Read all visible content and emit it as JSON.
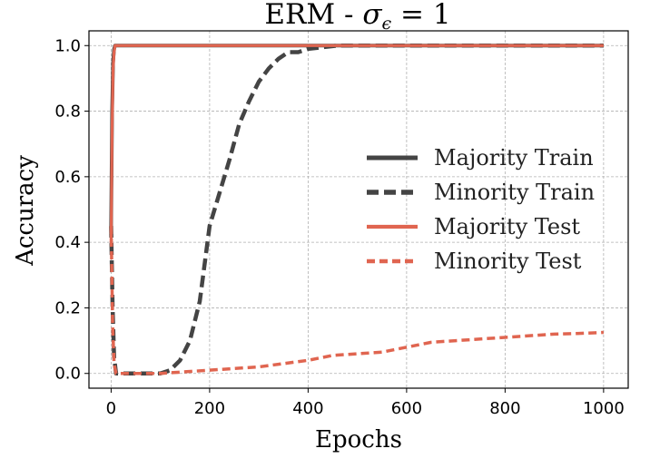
{
  "chart_data": {
    "type": "line",
    "title": "ERM - σϵ = 1",
    "title_prefix": "ERM - ",
    "title_sigma": "σ",
    "title_sub": "ϵ",
    "title_suffix": " = 1",
    "xlabel": "Epochs",
    "ylabel": "Accuracy",
    "xlim": [
      -45,
      1050
    ],
    "ylim": [
      -0.045,
      1.045
    ],
    "xticks": [
      0,
      200,
      400,
      600,
      800,
      1000
    ],
    "yticks": [
      0.0,
      0.2,
      0.4,
      0.6,
      0.8,
      1.0
    ],
    "xtick_labels": [
      "0",
      "200",
      "400",
      "600",
      "800",
      "1000"
    ],
    "ytick_labels": [
      "0.0",
      "0.2",
      "0.4",
      "0.6",
      "0.8",
      "1.0"
    ],
    "grid": true,
    "legend_position": "center-right",
    "series": [
      {
        "name": "Majority Train",
        "color": "#444444",
        "style": "solid",
        "x": [
          0,
          2,
          4,
          6,
          8,
          10,
          1000
        ],
        "y": [
          0.45,
          0.8,
          0.95,
          0.99,
          1.0,
          1.0,
          1.0
        ]
      },
      {
        "name": "Minority Train",
        "color": "#444444",
        "style": "dashed",
        "x": [
          0,
          3,
          6,
          10,
          50,
          100,
          120,
          140,
          160,
          180,
          200,
          220,
          240,
          260,
          280,
          300,
          320,
          340,
          360,
          380,
          400,
          430,
          460,
          1000
        ],
        "y": [
          0.45,
          0.2,
          0.05,
          0.0,
          0.0,
          0.0,
          0.01,
          0.04,
          0.1,
          0.22,
          0.45,
          0.55,
          0.65,
          0.76,
          0.83,
          0.89,
          0.93,
          0.96,
          0.98,
          0.98,
          0.99,
          0.995,
          1.0,
          1.0
        ]
      },
      {
        "name": "Majority Test",
        "color": "#e06550",
        "style": "solid",
        "x": [
          0,
          2,
          4,
          6,
          8,
          10,
          1000
        ],
        "y": [
          0.4,
          0.75,
          0.93,
          0.98,
          1.0,
          1.0,
          1.0
        ]
      },
      {
        "name": "Minority Test",
        "color": "#e06550",
        "style": "dashed",
        "x": [
          0,
          3,
          6,
          10,
          100,
          150,
          200,
          250,
          300,
          350,
          400,
          450,
          500,
          550,
          600,
          650,
          700,
          750,
          800,
          850,
          900,
          950,
          1000
        ],
        "y": [
          0.45,
          0.15,
          0.03,
          0.0,
          0.0,
          0.005,
          0.01,
          0.015,
          0.02,
          0.03,
          0.04,
          0.055,
          0.06,
          0.065,
          0.08,
          0.095,
          0.1,
          0.105,
          0.11,
          0.115,
          0.12,
          0.122,
          0.125
        ]
      }
    ]
  }
}
